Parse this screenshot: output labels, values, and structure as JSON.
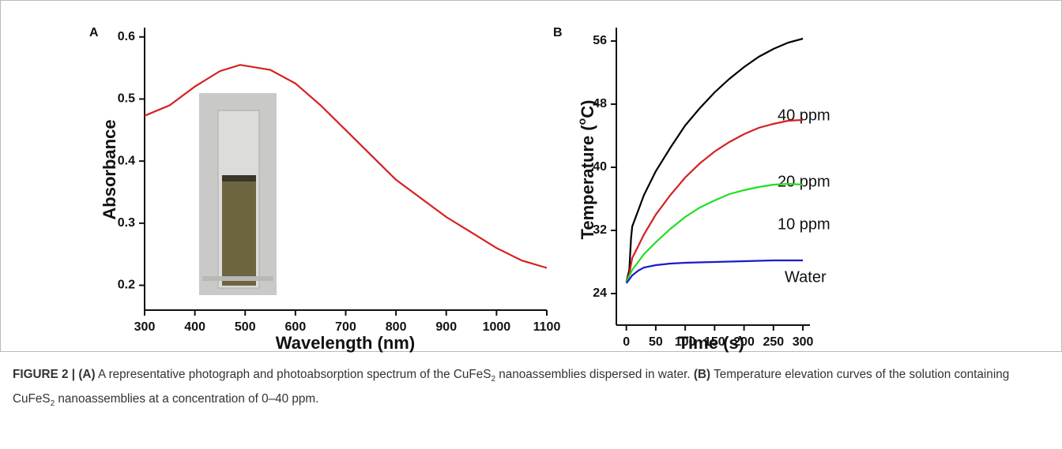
{
  "chart_data": [
    {
      "type": "line",
      "panel_label": "A",
      "xlabel": "Wavelength (nm)",
      "ylabel": "Absorbance",
      "x": [
        300,
        350,
        400,
        450,
        490,
        550,
        600,
        650,
        700,
        750,
        800,
        850,
        900,
        950,
        1000,
        1050,
        1100
      ],
      "values": [
        0.473,
        0.49,
        0.52,
        0.545,
        0.555,
        0.547,
        0.525,
        0.49,
        0.45,
        0.41,
        0.37,
        0.34,
        0.31,
        0.285,
        0.26,
        0.24,
        0.228
      ],
      "color": "#d62020",
      "xlim": [
        300,
        1100
      ],
      "xticks": [
        300,
        400,
        500,
        600,
        700,
        800,
        900,
        1000,
        1100
      ],
      "ylim": [
        0.16,
        0.615
      ],
      "yticks": [
        0.2,
        0.3,
        0.4,
        0.5,
        0.6
      ]
    },
    {
      "type": "line",
      "panel_label": "B",
      "xlabel": "Time (s)",
      "ylabel_parts": [
        "Temperature (",
        "o",
        "C)"
      ],
      "series": [
        {
          "name": "40 ppm",
          "color": "#000000",
          "x": [
            0,
            5,
            8,
            10,
            20,
            30,
            50,
            75,
            100,
            125,
            150,
            175,
            200,
            225,
            250,
            275,
            300
          ],
          "values": [
            25.5,
            27,
            31,
            32.5,
            34.5,
            36.5,
            39.5,
            42.5,
            45.3,
            47.5,
            49.5,
            51.2,
            52.7,
            54,
            55,
            55.8,
            56.3
          ]
        },
        {
          "name": "20 ppm",
          "color": "#d62020",
          "x": [
            0,
            5,
            10,
            20,
            30,
            50,
            75,
            100,
            125,
            150,
            175,
            200,
            225,
            250,
            275,
            300
          ],
          "values": [
            25.5,
            26.5,
            28.5,
            30,
            31.5,
            34,
            36.5,
            38.7,
            40.5,
            42,
            43.2,
            44.2,
            45,
            45.5,
            45.9,
            46
          ]
        },
        {
          "name": "10 ppm",
          "color": "#22dd22",
          "x": [
            0,
            10,
            20,
            30,
            50,
            75,
            100,
            125,
            150,
            175,
            200,
            225,
            250,
            275,
            300
          ],
          "values": [
            25.5,
            27,
            28,
            29,
            30.5,
            32.2,
            33.7,
            34.9,
            35.8,
            36.6,
            37.1,
            37.5,
            37.8,
            37.9,
            37.8
          ]
        },
        {
          "name": "Water",
          "color": "#1a1acc",
          "x": [
            0,
            10,
            20,
            30,
            50,
            75,
            100,
            150,
            200,
            250,
            300
          ],
          "values": [
            25.3,
            26.3,
            26.9,
            27.3,
            27.6,
            27.8,
            27.9,
            28,
            28.1,
            28.2,
            28.2
          ]
        }
      ],
      "xlim": [
        -17,
        312
      ],
      "xticks": [
        0,
        50,
        100,
        150,
        200,
        250,
        300
      ],
      "ylim": [
        20,
        57.7
      ],
      "yticks": [
        24,
        32,
        40,
        48,
        56
      ]
    }
  ],
  "caption": {
    "segments": [
      {
        "text": "FIGURE 2 | (A)",
        "style": "bold"
      },
      {
        "text": " A representative photograph and photoabsorption spectrum of the CuFeS",
        "style": "normal"
      },
      {
        "text": "2",
        "style": "sub"
      },
      {
        "text": " nanoassemblies dispersed in water. ",
        "style": "normal"
      },
      {
        "text": "(B)",
        "style": "bold"
      },
      {
        "text": " Temperature elevation curves of the solution containing CuFeS",
        "style": "normal"
      },
      {
        "text": "2",
        "style": "sub"
      },
      {
        "text": " nanoassemblies at a concentration of 0–40 ppm.",
        "style": "normal"
      }
    ]
  }
}
